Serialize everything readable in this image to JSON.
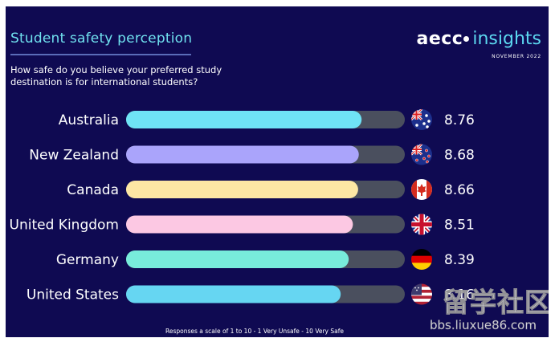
{
  "header": {
    "title": "Student safety perception",
    "subtitle": "How safe do you believe your preferred study destination is for international students?",
    "brand_name": "aecc",
    "brand_suffix": "insights",
    "date": "NOVEMBER 2022"
  },
  "footnote": "Responses a scale of 1 to 10 - 1 Very Unsafe - 10 Very Safe",
  "watermark": {
    "text": "留学社区",
    "url": "bbs.liuxue86.com"
  },
  "colors": {
    "background": "#0f0a52",
    "track": "#4a4f5e",
    "title": "#6fe0ee",
    "bars": [
      "#6fe3f6",
      "#aaa4fb",
      "#fde7a4",
      "#fcc8e3",
      "#78ecdb",
      "#66d6f2"
    ]
  },
  "chart_data": {
    "type": "bar",
    "orientation": "horizontal",
    "title": "Student safety perception",
    "categories": [
      "Australia",
      "New Zealand",
      "Canada",
      "United Kingdom",
      "Germany",
      "United States"
    ],
    "values": [
      8.76,
      8.68,
      8.66,
      8.51,
      8.39,
      8.16
    ],
    "value_labels": [
      "8.76",
      "8.68",
      "8.66",
      "8.51",
      "8.39",
      "8.16"
    ],
    "flag_icons": [
      "flag-australia-icon",
      "flag-new-zealand-icon",
      "flag-canada-icon",
      "flag-united-kingdom-icon",
      "flag-germany-icon",
      "flag-united-states-icon"
    ],
    "xlim": [
      0,
      10
    ],
    "xlabel": "",
    "ylabel": "",
    "grid": false,
    "legend": "none"
  }
}
